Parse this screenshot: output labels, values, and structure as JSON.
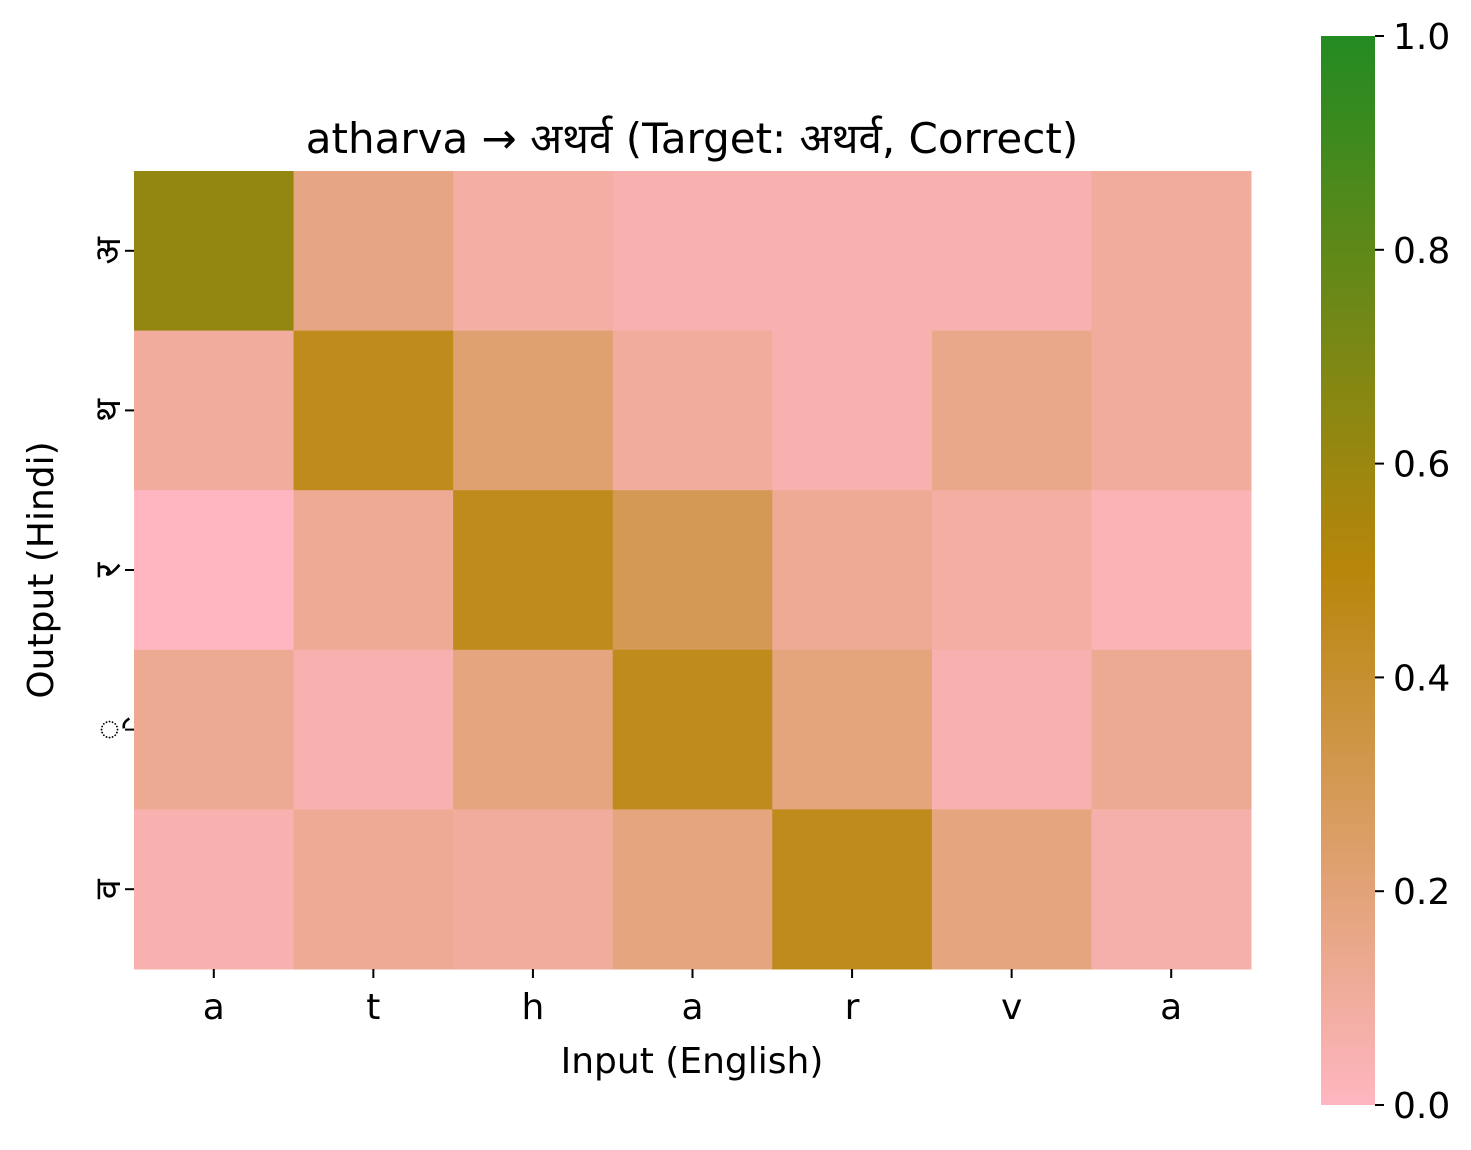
{
  "chart_data": {
    "type": "heatmap",
    "title": "atharva → अथर्व (Target: अथर्व, Correct)",
    "xlabel": "Input (English)",
    "ylabel": "Output (Hindi)",
    "x_categories": [
      "a",
      "t",
      "h",
      "a",
      "r",
      "v",
      "a"
    ],
    "y_categories": [
      "अ",
      "थ",
      "र",
      "्",
      "व"
    ],
    "values": [
      [
        0.62,
        0.17,
        0.08,
        0.05,
        0.05,
        0.05,
        0.1
      ],
      [
        0.1,
        0.45,
        0.22,
        0.1,
        0.05,
        0.15,
        0.1
      ],
      [
        0.0,
        0.12,
        0.45,
        0.3,
        0.12,
        0.08,
        0.03
      ],
      [
        0.13,
        0.05,
        0.18,
        0.45,
        0.19,
        0.05,
        0.13
      ],
      [
        0.05,
        0.12,
        0.1,
        0.18,
        0.45,
        0.18,
        0.06
      ]
    ],
    "colorbar": {
      "range": [
        0.0,
        1.0
      ],
      "ticks": [
        "0.0",
        "0.2",
        "0.4",
        "0.6",
        "0.8",
        "1.0"
      ],
      "colors": [
        "#FFB6C1",
        "#B8860B",
        "#228B22"
      ]
    },
    "grid": false
  }
}
